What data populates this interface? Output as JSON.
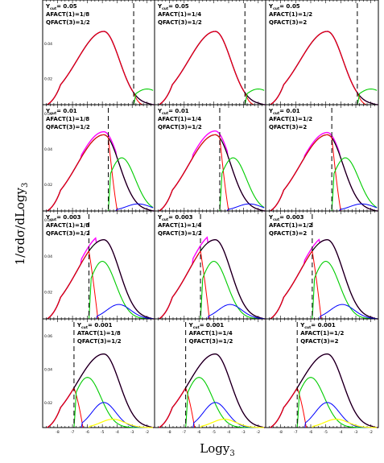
{
  "chart_data": {
    "type": "line",
    "layout": "4x3 grid of panels",
    "ylabel": "1/σdσ/dLogy",
    "ylabel_sub": "3",
    "xlabel": "Logy",
    "xlabel_sub": "3",
    "xlim": [
      -9,
      -1.5
    ],
    "x_ticks": [
      "-8",
      "-7",
      "-6",
      "-5",
      "-4",
      "-3",
      "-2"
    ],
    "ylim": [
      0,
      0.06
    ],
    "y_ticks": [
      0.02,
      0.04
    ],
    "series_colors": {
      "total": "#000000",
      "total_alt": "#ff00ff",
      "n2": "#ff0000",
      "n3": "#00cc00",
      "n4": "#0000ff",
      "n5": "#ffff00"
    },
    "panels": [
      {
        "ycut_label": "Y",
        "ycut_sub": "cut",
        "ycut_value": "0.05",
        "afact_label": "AFACT(1)=1/8",
        "qfact_label": "QFACT(3)=1/2",
        "cut_logy": -2.9,
        "mult": 1,
        "peak": 0.042,
        "ymax": 0.06,
        "tick_labels": [
          "",
          "0.04",
          "0.02"
        ],
        "n3_scale": 0.009,
        "n4_scale": 0
      },
      {
        "ycut_label": "Y",
        "ycut_sub": "cut",
        "ycut_value": "0.05",
        "afact_label": "AFACT(1)=1/4",
        "qfact_label": "QFACT(3)=1/2",
        "cut_logy": -2.9,
        "mult": 1,
        "peak": 0.042,
        "ymax": 0.06,
        "tick_labels": [
          "",
          "",
          ""
        ],
        "n3_scale": 0.009,
        "n4_scale": 0
      },
      {
        "ycut_label": "Y",
        "ycut_sub": "cut",
        "ycut_value": "0.05",
        "afact_label": "AFACT(1)=1/2",
        "qfact_label": "QFACT(3)=2",
        "cut_logy": -2.9,
        "mult": 1,
        "peak": 0.042,
        "ymax": 0.06,
        "tick_labels": [
          "",
          "",
          ""
        ],
        "n3_scale": 0.009,
        "n4_scale": 0
      },
      {
        "ycut_label": "Y",
        "ycut_sub": "cut",
        "ycut_value": "0.01",
        "afact_label": "AFACT(1)=1/8",
        "qfact_label": "QFACT(3)=1/2",
        "cut_logy": -4.6,
        "mult": 1.04,
        "peak": 0.043,
        "ymax": 0.06,
        "tick_labels": [
          "0.06",
          "0.04",
          "0.02"
        ],
        "n3_scale": 0.03,
        "n4_scale": 0.004
      },
      {
        "ycut_label": "Y",
        "ycut_sub": "cut",
        "ycut_value": "0.01",
        "afact_label": "AFACT(1)=1/4",
        "qfact_label": "QFACT(3)=1/2",
        "cut_logy": -4.6,
        "mult": 1.05,
        "peak": 0.043,
        "ymax": 0.06,
        "tick_labels": [
          "",
          "",
          ""
        ],
        "n3_scale": 0.03,
        "n4_scale": 0.004
      },
      {
        "ycut_label": "Y",
        "ycut_sub": "cut",
        "ycut_value": "0.01",
        "afact_label": "AFACT(1)=1/2",
        "qfact_label": "QFACT(3)=2",
        "cut_logy": -4.6,
        "mult": 1.03,
        "peak": 0.043,
        "ymax": 0.06,
        "tick_labels": [
          "",
          "",
          ""
        ],
        "n3_scale": 0.03,
        "n4_scale": 0.004
      },
      {
        "ycut_label": "Y",
        "ycut_sub": "cut",
        "ycut_value": "0.003",
        "afact_label": "AFACT(1)=1/8",
        "qfact_label": "QFACT(3)=1/2",
        "cut_logy": -5.9,
        "mult": 1.07,
        "peak": 0.044,
        "ymax": 0.06,
        "tick_labels": [
          "0.06",
          "0.04",
          "0.02"
        ],
        "n3_scale": 0.032,
        "n4_scale": 0.008
      },
      {
        "ycut_label": "Y",
        "ycut_sub": "cut",
        "ycut_value": "0.003",
        "afact_label": "AFACT(1)=1/4",
        "qfact_label": "QFACT(3)=1/2",
        "cut_logy": -5.9,
        "mult": 1.08,
        "peak": 0.044,
        "ymax": 0.06,
        "tick_labels": [
          "",
          "",
          ""
        ],
        "n3_scale": 0.032,
        "n4_scale": 0.008
      },
      {
        "ycut_label": "Y",
        "ycut_sub": "cut",
        "ycut_value": "0.003",
        "afact_label": "AFACT(1)=1/2",
        "qfact_label": "QFACT(3)=2",
        "cut_logy": -5.9,
        "mult": 1.05,
        "peak": 0.044,
        "ymax": 0.06,
        "tick_labels": [
          "",
          "",
          ""
        ],
        "n3_scale": 0.032,
        "n4_scale": 0.008
      },
      {
        "ycut_label": "Y",
        "ycut_sub": "cut",
        "ycut_value": "0.001",
        "afact_label": "ATACT(1)=1/8",
        "qfact_label": "QFACT(3)=1/2",
        "cut_logy": -6.9,
        "mult": 1.15,
        "peak": 0.044,
        "ymax": 0.065,
        "tick_labels": [
          "0.06",
          "0.04",
          "0.02"
        ],
        "n3_scale": 0.03,
        "n4_scale": 0.015
      },
      {
        "ycut_label": "Y",
        "ycut_sub": "cut",
        "ycut_value": "0.001",
        "afact_label": "AFACT(1)=1/4",
        "qfact_label": "QFACT(3)=1/2",
        "cut_logy": -6.9,
        "mult": 1.12,
        "peak": 0.044,
        "ymax": 0.065,
        "tick_labels": [
          "",
          "",
          ""
        ],
        "n3_scale": 0.03,
        "n4_scale": 0.015
      },
      {
        "ycut_label": "Y",
        "ycut_sub": "cut",
        "ycut_value": "0.001",
        "afact_label": "AFACT(1)=1/2",
        "qfact_label": "QFACT(3)=2",
        "cut_logy": -6.9,
        "mult": 1.0,
        "peak": 0.044,
        "ymax": 0.065,
        "tick_labels": [
          "",
          "",
          ""
        ],
        "n3_scale": 0.03,
        "n4_scale": 0.015
      }
    ]
  }
}
